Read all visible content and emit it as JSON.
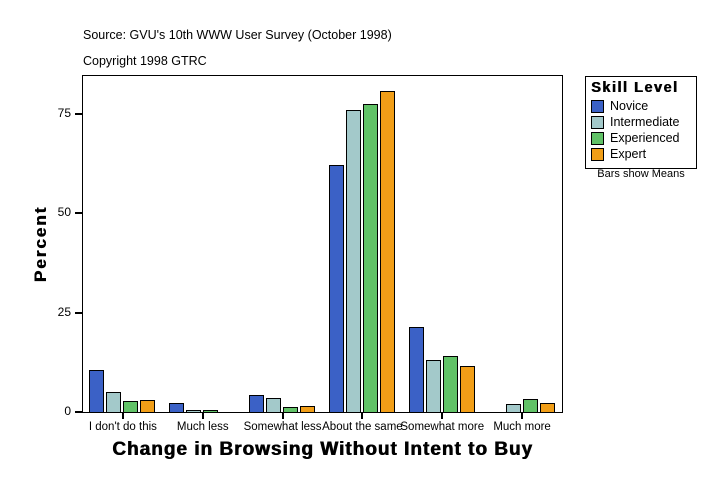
{
  "header": {
    "source": "Source: GVU's 10th WWW User Survey (October 1998)",
    "copyright": "Copyright 1998 GTRC"
  },
  "chart_data": {
    "type": "bar",
    "title": "",
    "xlabel": "Change in Browsing Without Intent to Buy",
    "ylabel": "Percent",
    "categories": [
      "I don't do this",
      "Much less",
      "Somewhat less",
      "About the same",
      "Somewhat more",
      "Much more"
    ],
    "series": [
      {
        "name": "Novice",
        "color": "#3B61C6",
        "values": [
          10.5,
          2.2,
          4.3,
          62.0,
          21.3,
          0
        ]
      },
      {
        "name": "Intermediate",
        "color": "#A3C9CA",
        "values": [
          5.0,
          0.6,
          3.4,
          76.0,
          13.0,
          2.0
        ]
      },
      {
        "name": "Experienced",
        "color": "#61C267",
        "values": [
          2.8,
          0.3,
          1.3,
          77.4,
          14.0,
          3.3
        ]
      },
      {
        "name": "Expert",
        "color": "#F19E17",
        "values": [
          3.0,
          0,
          1.5,
          80.7,
          11.5,
          2.3
        ]
      }
    ],
    "yticks": [
      0,
      25,
      50,
      75
    ],
    "ylim": [
      0,
      84.5
    ],
    "grid": false,
    "legend_position": "right",
    "bar_outline_color": "#000000",
    "note": "Bars show Means"
  },
  "legend": {
    "title": "Skill Level",
    "note": "Bars show Means"
  }
}
